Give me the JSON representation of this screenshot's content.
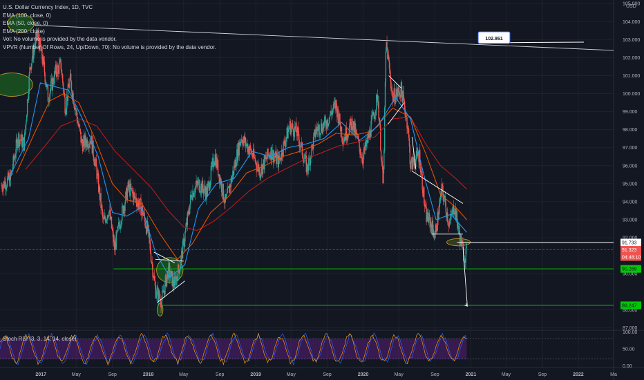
{
  "legend": {
    "symbol": "U.S. Dollar Currency Index, 1D, TVC",
    "ema100": "EMA (100, close, 0)",
    "ema50": "EMA (50, close, 0)",
    "ema200": "EMA (200, close)",
    "vol": "Vol: No volume is provided by the data vendor.",
    "vpvr": "VPVR (Number Of Rows, 24, Up/Down, 70): No volume is provided by the data vendor."
  },
  "rsi_label": "Stoch RSI (3, 3, 14, 14, close)",
  "callout": "102.861",
  "price_tags": [
    {
      "text": "91.733",
      "value": 91.733,
      "bg": "#ffffff",
      "fg": "#131722"
    },
    {
      "text": "91.323",
      "value": 91.323,
      "bg": "#ef5350",
      "fg": "#ffffff"
    },
    {
      "text": "04:48:10",
      "value": 91.06,
      "bg": "#ef5350",
      "fg": "#ffffff"
    },
    {
      "text": "90.269",
      "value": 90.269,
      "bg": "#00c805",
      "fg": "#131722"
    },
    {
      "text": "88.247",
      "value": 88.247,
      "bg": "#00c805",
      "fg": "#131722"
    }
  ],
  "chart_data": [
    {
      "type": "candlestick",
      "currency": "USD",
      "ylim": [
        86.9,
        105.2
      ],
      "y_ticks": [
        {
          "v": 105,
          "t": "105.000"
        },
        {
          "v": 104,
          "t": "104.000"
        },
        {
          "v": 103,
          "t": "103.000"
        },
        {
          "v": 102,
          "t": "102.000"
        },
        {
          "v": 101,
          "t": "101.000"
        },
        {
          "v": 100,
          "t": "100.000"
        },
        {
          "v": 99,
          "t": "99.000"
        },
        {
          "v": 98,
          "t": "98.000"
        },
        {
          "v": 97,
          "t": "97.000"
        },
        {
          "v": 96,
          "t": "96.000"
        },
        {
          "v": 95,
          "t": "95.000"
        },
        {
          "v": 94,
          "t": "94.000"
        },
        {
          "v": 93,
          "t": "93.000"
        },
        {
          "v": 92,
          "t": "92.000"
        },
        {
          "v": 90,
          "t": "90.000"
        },
        {
          "v": 88,
          "t": "88.000"
        },
        {
          "v": 87,
          "t": "87.000"
        }
      ],
      "x_ticks": [
        {
          "d": "2017-01-01",
          "t": "2017"
        },
        {
          "d": "2017-05-01",
          "t": "May"
        },
        {
          "d": "2017-09-01",
          "t": "Sep"
        },
        {
          "d": "2018-01-01",
          "t": "2018"
        },
        {
          "d": "2018-05-01",
          "t": "May"
        },
        {
          "d": "2018-09-01",
          "t": "Sep"
        },
        {
          "d": "2019-01-01",
          "t": "2019"
        },
        {
          "d": "2019-05-01",
          "t": "May"
        },
        {
          "d": "2019-09-01",
          "t": "Sep"
        },
        {
          "d": "2020-01-01",
          "t": "2020"
        },
        {
          "d": "2020-05-01",
          "t": "May"
        },
        {
          "d": "2020-09-01",
          "t": "Sep"
        },
        {
          "d": "2021-01-01",
          "t": "2021"
        },
        {
          "d": "2021-05-01",
          "t": "May"
        },
        {
          "d": "2021-09-01",
          "t": "Sep"
        },
        {
          "d": "2022-01-01",
          "t": "2022"
        },
        {
          "d": "2022-05-01",
          "t": "Ma"
        }
      ],
      "xlim": [
        "2016-08-15",
        "2022-05-01"
      ],
      "price_path": [
        [
          "2016-08-20",
          94.9
        ],
        [
          "2016-09-20",
          95.3
        ],
        [
          "2016-10-15",
          97.6
        ],
        [
          "2016-11-05",
          97.2
        ],
        [
          "2016-11-25",
          101.5
        ],
        [
          "2016-12-20",
          103.3
        ],
        [
          "2017-01-10",
          101.6
        ],
        [
          "2017-01-25",
          99.8
        ],
        [
          "2017-02-20",
          101.2
        ],
        [
          "2017-03-10",
          101.6
        ],
        [
          "2017-03-25",
          99.2
        ],
        [
          "2017-04-10",
          100.8
        ],
        [
          "2017-04-28",
          99.2
        ],
        [
          "2017-05-20",
          97.2
        ],
        [
          "2017-06-20",
          97.5
        ],
        [
          "2017-07-10",
          95.6
        ],
        [
          "2017-08-01",
          92.8
        ],
        [
          "2017-08-20",
          93.6
        ],
        [
          "2017-09-08",
          91.4
        ],
        [
          "2017-09-25",
          92.8
        ],
        [
          "2017-10-25",
          94.8
        ],
        [
          "2017-11-10",
          94.4
        ],
        [
          "2017-12-10",
          93.6
        ],
        [
          "2018-01-01",
          92.2
        ],
        [
          "2018-01-25",
          89.1
        ],
        [
          "2018-02-15",
          88.5
        ],
        [
          "2018-03-10",
          90.2
        ],
        [
          "2018-03-30",
          89.4
        ],
        [
          "2018-04-20",
          90.6
        ],
        [
          "2018-05-10",
          92.6
        ],
        [
          "2018-05-28",
          94.5
        ],
        [
          "2018-06-20",
          95.0
        ],
        [
          "2018-07-20",
          94.5
        ],
        [
          "2018-08-15",
          96.6
        ],
        [
          "2018-09-20",
          93.9
        ],
        [
          "2018-10-10",
          95.2
        ],
        [
          "2018-11-12",
          97.6
        ],
        [
          "2018-12-15",
          96.8
        ],
        [
          "2019-01-15",
          95.7
        ],
        [
          "2019-02-20",
          96.8
        ],
        [
          "2019-03-20",
          96.2
        ],
        [
          "2019-04-26",
          98.2
        ],
        [
          "2019-05-20",
          97.9
        ],
        [
          "2019-06-25",
          95.8
        ],
        [
          "2019-07-25",
          98.0
        ],
        [
          "2019-08-25",
          98.3
        ],
        [
          "2019-09-30",
          99.4
        ],
        [
          "2019-10-25",
          97.5
        ],
        [
          "2019-11-25",
          98.4
        ],
        [
          "2019-12-30",
          96.4
        ],
        [
          "2020-01-20",
          97.6
        ],
        [
          "2020-02-20",
          99.9
        ],
        [
          "2020-03-09",
          94.7
        ],
        [
          "2020-03-19",
          102.9
        ],
        [
          "2020-04-10",
          99.8
        ],
        [
          "2020-05-10",
          100.2
        ],
        [
          "2020-05-31",
          98.3
        ],
        [
          "2020-06-10",
          96.0
        ],
        [
          "2020-07-10",
          96.6
        ],
        [
          "2020-07-31",
          93.3
        ],
        [
          "2020-08-20",
          92.7
        ],
        [
          "2020-09-01",
          92.1
        ],
        [
          "2020-09-25",
          94.7
        ],
        [
          "2020-10-20",
          92.7
        ],
        [
          "2020-11-05",
          93.8
        ],
        [
          "2020-11-25",
          92.0
        ],
        [
          "2020-12-10",
          90.9
        ],
        [
          "2020-12-18",
          91.3
        ]
      ],
      "ema50": [
        [
          "2016-09-10",
          95.2
        ],
        [
          "2016-11-20",
          97.5
        ],
        [
          "2016-12-30",
          100.6
        ],
        [
          "2017-02-15",
          100.4
        ],
        [
          "2017-04-05",
          100.2
        ],
        [
          "2017-05-25",
          98.5
        ],
        [
          "2017-07-15",
          96.5
        ],
        [
          "2017-09-01",
          93.4
        ],
        [
          "2017-10-20",
          93.2
        ],
        [
          "2017-12-10",
          93.7
        ],
        [
          "2018-01-25",
          91.2
        ],
        [
          "2018-03-15",
          89.8
        ],
        [
          "2018-05-05",
          90.5
        ],
        [
          "2018-06-20",
          93.6
        ],
        [
          "2018-08-20",
          95.0
        ],
        [
          "2018-10-20",
          95.3
        ],
        [
          "2018-12-20",
          96.8
        ],
        [
          "2019-02-20",
          96.5
        ],
        [
          "2019-04-20",
          97.0
        ],
        [
          "2019-06-20",
          97.2
        ],
        [
          "2019-08-20",
          97.5
        ],
        [
          "2019-10-20",
          98.4
        ],
        [
          "2019-12-20",
          97.4
        ],
        [
          "2020-02-20",
          98.2
        ],
        [
          "2020-04-20",
          99.8
        ],
        [
          "2020-06-10",
          98.6
        ],
        [
          "2020-07-25",
          95.5
        ],
        [
          "2020-09-05",
          93.0
        ],
        [
          "2020-10-25",
          93.3
        ],
        [
          "2020-12-18",
          92.3
        ]
      ],
      "ema100": [
        [
          "2016-10-10",
          95.6
        ],
        [
          "2016-12-10",
          97.8
        ],
        [
          "2017-01-31",
          99.6
        ],
        [
          "2017-03-20",
          100.0
        ],
        [
          "2017-05-10",
          99.5
        ],
        [
          "2017-07-01",
          97.6
        ],
        [
          "2017-09-01",
          95.0
        ],
        [
          "2017-10-20",
          94.1
        ],
        [
          "2017-12-10",
          93.9
        ],
        [
          "2018-02-10",
          92.2
        ],
        [
          "2018-04-10",
          90.8
        ],
        [
          "2018-06-01",
          91.7
        ],
        [
          "2018-08-01",
          93.4
        ],
        [
          "2018-10-01",
          94.3
        ],
        [
          "2018-12-01",
          95.6
        ],
        [
          "2019-02-01",
          96.0
        ],
        [
          "2019-04-01",
          96.5
        ],
        [
          "2019-06-01",
          96.8
        ],
        [
          "2019-08-01",
          97.2
        ],
        [
          "2019-10-01",
          97.8
        ],
        [
          "2019-12-01",
          97.7
        ],
        [
          "2020-02-01",
          97.9
        ],
        [
          "2020-04-10",
          99.2
        ],
        [
          "2020-06-10",
          98.7
        ],
        [
          "2020-07-31",
          96.7
        ],
        [
          "2020-09-20",
          94.4
        ],
        [
          "2020-11-10",
          93.7
        ],
        [
          "2020-12-18",
          93.0
        ]
      ],
      "ema200": [
        [
          "2016-11-10",
          95.8
        ],
        [
          "2017-01-10",
          97.0
        ],
        [
          "2017-03-10",
          98.2
        ],
        [
          "2017-05-10",
          98.6
        ],
        [
          "2017-07-10",
          98.2
        ],
        [
          "2017-09-10",
          96.8
        ],
        [
          "2017-11-10",
          95.8
        ],
        [
          "2018-01-10",
          94.8
        ],
        [
          "2018-03-10",
          93.5
        ],
        [
          "2018-05-01",
          92.6
        ],
        [
          "2018-06-15",
          92.4
        ],
        [
          "2018-08-10",
          92.9
        ],
        [
          "2018-10-10",
          93.7
        ],
        [
          "2018-12-10",
          94.6
        ],
        [
          "2019-02-10",
          95.3
        ],
        [
          "2019-04-10",
          95.8
        ],
        [
          "2019-06-10",
          96.3
        ],
        [
          "2019-08-10",
          96.7
        ],
        [
          "2019-10-10",
          97.1
        ],
        [
          "2019-12-10",
          97.3
        ],
        [
          "2020-02-10",
          97.6
        ],
        [
          "2020-04-10",
          98.6
        ],
        [
          "2020-06-10",
          98.7
        ],
        [
          "2020-08-01",
          97.2
        ],
        [
          "2020-09-20",
          96.0
        ],
        [
          "2020-11-10",
          95.3
        ],
        [
          "2020-12-18",
          94.7
        ]
      ],
      "horizontal_levels": [
        {
          "value": 91.733,
          "start": "2020-11-15",
          "color": "#ffffff"
        },
        {
          "value": 91.323,
          "start": "2016-08-15",
          "color": "#ef5350"
        },
        {
          "value": 90.269,
          "start": "2017-09-05",
          "color": "#00c805"
        },
        {
          "value": 88.247,
          "start": "2018-02-12",
          "color": "#00c805"
        }
      ],
      "trendlines": [
        {
          "from": [
            "2016-12-10",
            103.8
          ],
          "to": [
            "2022-05-01",
            102.4
          ],
          "color": "#d1d4dc"
        },
        {
          "from": [
            "2018-01-25",
            90.8
          ],
          "to": [
            "2018-05-01",
            90.7
          ],
          "color": "#ffffff"
        },
        {
          "from": [
            "2018-01-31",
            88.4
          ],
          "to": [
            "2018-05-05",
            89.6
          ],
          "color": "#ffffff"
        },
        {
          "from": [
            "2018-01-20",
            91.2
          ],
          "to": [
            "2018-04-01",
            90.6
          ],
          "color": "#ffffff"
        },
        {
          "from": [
            "2020-03-28",
            101.0
          ],
          "to": [
            "2020-05-10",
            100.3
          ],
          "color": "#ffffff"
        },
        {
          "from": [
            "2020-03-25",
            98.3
          ],
          "to": [
            "2020-05-20",
            99.5
          ],
          "color": "#ffffff"
        },
        {
          "from": [
            "2020-06-15",
            97.6
          ],
          "to": [
            "2020-06-28",
            95.8
          ],
          "color": "#ffffff"
        },
        {
          "from": [
            "2020-06-15",
            95.7
          ],
          "to": [
            "2020-12-05",
            93.9
          ],
          "color": "#ffffff"
        },
        {
          "from": [
            "2020-08-20",
            92.2
          ],
          "to": [
            "2020-12-05",
            92.2
          ],
          "color": "#ffffff"
        }
      ],
      "projection_arrows": [
        {
          "from": [
            "2020-12-05",
            91.5
          ],
          "to": [
            "2020-12-20",
            88.2
          ]
        },
        {
          "from": [
            "2020-12-20",
            88.2
          ],
          "to": [
            "2020-12-10",
            88.3
          ]
        }
      ],
      "ellipses": [
        {
          "cx": "2016-09-25",
          "cy": 100.5,
          "rx_days": 70,
          "ry": 0.65,
          "color": "#1b5e20"
        },
        {
          "cx": "2016-10-25",
          "cy": 103.9,
          "rx_days": 45,
          "ry": 0.5,
          "color": "#1b5e20"
        },
        {
          "cx": "2018-03-15",
          "cy": 90.2,
          "rx_days": 45,
          "ry": 0.7,
          "color": "#1b5e20"
        },
        {
          "cx": "2018-02-10",
          "cy": 88.0,
          "rx_days": 10,
          "ry": 0.35,
          "color": "#1b5e20"
        },
        {
          "cx": "2020-11-20",
          "cy": 91.75,
          "rx_days": 40,
          "ry": 0.2,
          "color": "#3e4a1d"
        }
      ],
      "callout_point": [
        "2022-01-20",
        102.86
      ]
    },
    {
      "type": "line",
      "title": "Stoch RSI (3, 3, 14, 14, close)",
      "ylim": [
        -5,
        105
      ],
      "y_ticks": [
        {
          "v": 100,
          "t": "100.00"
        },
        {
          "v": 50,
          "t": "50.00"
        },
        {
          "v": 0,
          "t": "0.00"
        }
      ],
      "band": [
        20,
        80
      ],
      "series": [
        {
          "color": "#2962ff",
          "pattern": "oscillating"
        },
        {
          "color": "#ff9800",
          "pattern": "oscillating"
        }
      ]
    }
  ]
}
